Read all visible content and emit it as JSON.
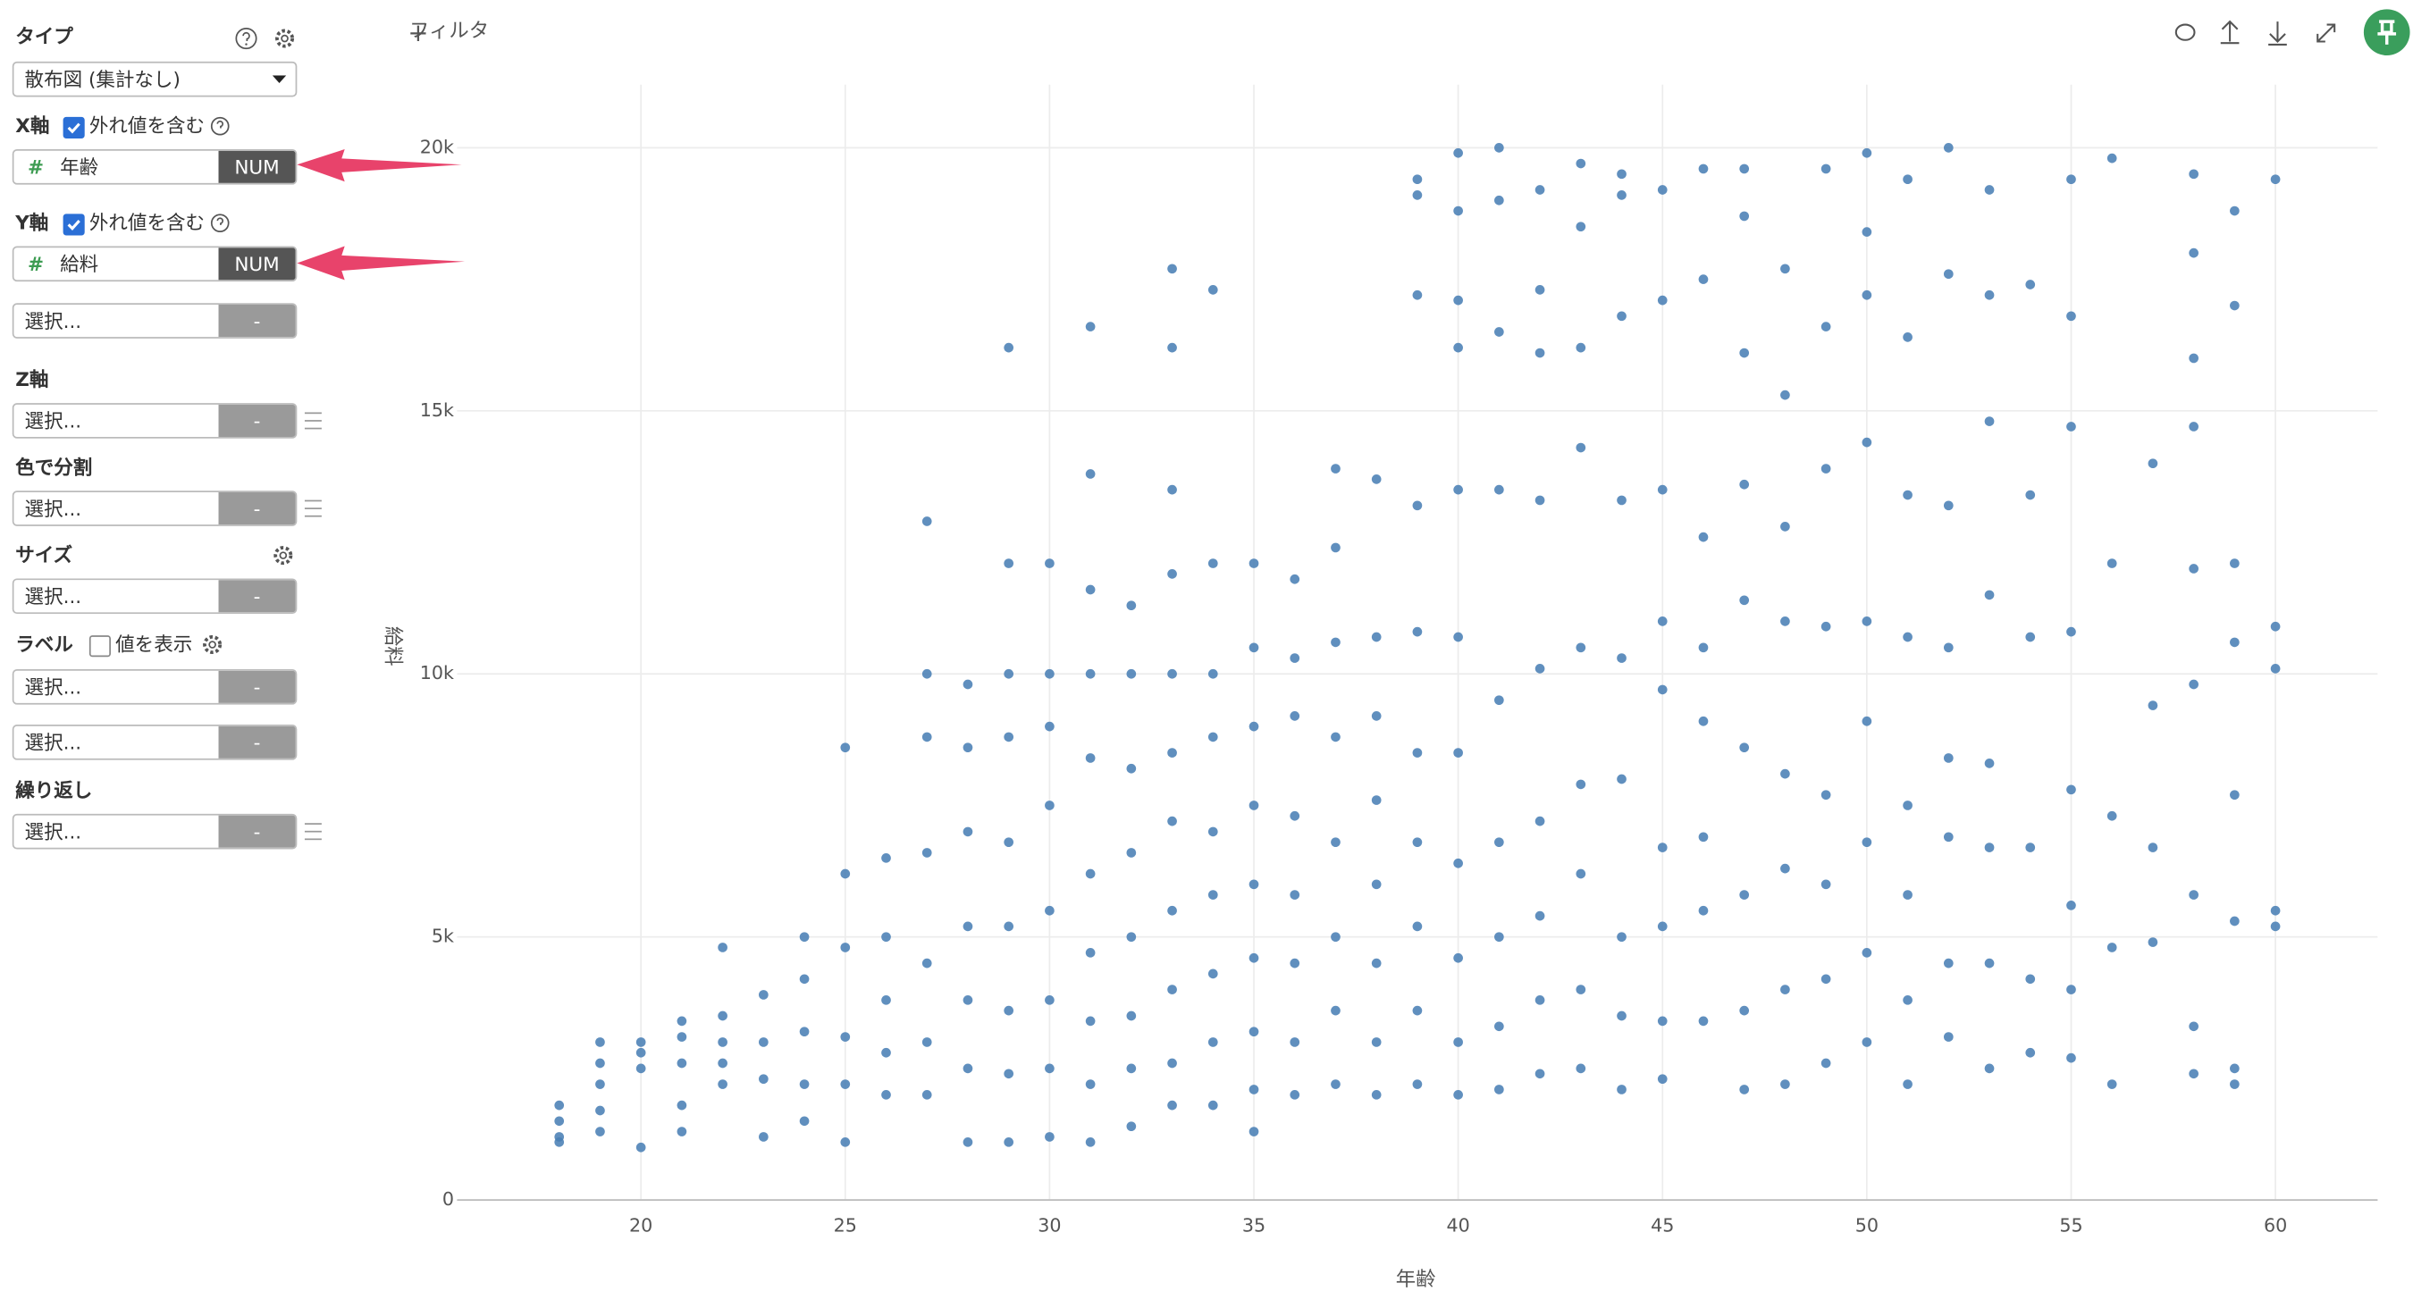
{
  "toolbar": {
    "filter": "フィルタ"
  },
  "sidebar": {
    "type": {
      "label": "タイプ",
      "value": "散布図 (集計なし)"
    },
    "x_axis": {
      "label": "X軸",
      "option": "外れ値を含む",
      "checked": true,
      "field": "年齢",
      "kind": "NUM"
    },
    "y_axis": {
      "label": "Y軸",
      "option": "外れ値を含む",
      "checked": true,
      "field": "給料",
      "kind": "NUM",
      "extra": {
        "placeholder": "選択...",
        "tag": "-"
      }
    },
    "z_axis": {
      "label": "Z軸",
      "select": {
        "placeholder": "選択...",
        "tag": "-"
      }
    },
    "color": {
      "label": "色で分割",
      "select": {
        "placeholder": "選択...",
        "tag": "-"
      }
    },
    "size": {
      "label": "サイズ",
      "select": {
        "placeholder": "選択...",
        "tag": "-"
      }
    },
    "label": {
      "label": "ラベル",
      "option": "値を表示",
      "checked": false,
      "selects": [
        {
          "placeholder": "選択...",
          "tag": "-"
        },
        {
          "placeholder": "選択...",
          "tag": "-"
        }
      ]
    },
    "repeat": {
      "label": "繰り返し",
      "select": {
        "placeholder": "選択...",
        "tag": "-"
      }
    }
  },
  "chart_data": {
    "type": "scatter",
    "xlabel": "年齢",
    "ylabel": "給料",
    "color": "#4a7fb5",
    "grid": true,
    "xlim": [
      15.5,
      62.5
    ],
    "ylim": [
      0,
      21200
    ],
    "xticks": [
      20,
      25,
      30,
      35,
      40,
      45,
      50,
      55,
      60
    ],
    "yticks": [
      0,
      {
        "value": 5000,
        "label": "5k"
      },
      {
        "value": 10000,
        "label": "10k"
      },
      {
        "value": 15000,
        "label": "15k"
      },
      {
        "value": 20000,
        "label": "20k"
      }
    ],
    "x": [
      18,
      18,
      18,
      18,
      19,
      19,
      19,
      19,
      19,
      20,
      20,
      20,
      20,
      21,
      21,
      21,
      21,
      21,
      22,
      22,
      22,
      22,
      22,
      23,
      23,
      23,
      23,
      24,
      24,
      24,
      24,
      24,
      25,
      25,
      25,
      25,
      25,
      25,
      26,
      26,
      26,
      26,
      26,
      27,
      27,
      27,
      27,
      27,
      27,
      27,
      28,
      28,
      28,
      28,
      28,
      28,
      28,
      29,
      29,
      29,
      29,
      29,
      29,
      29,
      29,
      29,
      30,
      30,
      30,
      30,
      30,
      30,
      30,
      30,
      31,
      31,
      31,
      31,
      31,
      31,
      31,
      31,
      31,
      31,
      32,
      32,
      32,
      32,
      32,
      32,
      32,
      32,
      33,
      33,
      33,
      33,
      33,
      33,
      33,
      33,
      33,
      33,
      33,
      34,
      34,
      34,
      34,
      34,
      34,
      34,
      34,
      34,
      35,
      35,
      35,
      35,
      35,
      35,
      35,
      35,
      35,
      36,
      36,
      36,
      36,
      36,
      36,
      36,
      36,
      37,
      37,
      37,
      37,
      37,
      37,
      37,
      37,
      38,
      38,
      38,
      38,
      38,
      38,
      38,
      38,
      39,
      39,
      39,
      39,
      39,
      39,
      39,
      39,
      39,
      39,
      40,
      40,
      40,
      40,
      40,
      40,
      40,
      40,
      40,
      40,
      40,
      41,
      41,
      41,
      41,
      41,
      41,
      41,
      41,
      41,
      42,
      42,
      42,
      42,
      42,
      42,
      42,
      42,
      42,
      43,
      43,
      43,
      43,
      43,
      43,
      43,
      43,
      43,
      44,
      44,
      44,
      44,
      44,
      44,
      44,
      44,
      44,
      45,
      45,
      45,
      45,
      45,
      45,
      45,
      45,
      45,
      46,
      46,
      46,
      46,
      46,
      46,
      46,
      46,
      47,
      47,
      47,
      47,
      47,
      47,
      47,
      47,
      47,
      48,
      48,
      48,
      48,
      48,
      48,
      48,
      48,
      49,
      49,
      49,
      49,
      49,
      49,
      49,
      49,
      50,
      50,
      50,
      50,
      50,
      50,
      50,
      50,
      50,
      51,
      51,
      51,
      51,
      51,
      51,
      51,
      51,
      52,
      52,
      52,
      52,
      52,
      52,
      52,
      52,
      53,
      53,
      53,
      53,
      53,
      53,
      53,
      53,
      54,
      54,
      54,
      54,
      54,
      54,
      55,
      55,
      55,
      55,
      55,
      55,
      55,
      55,
      56,
      56,
      56,
      56,
      56,
      57,
      57,
      57,
      57,
      58,
      58,
      58,
      58,
      58,
      58,
      58,
      58,
      58,
      59,
      59,
      59,
      59,
      59,
      59,
      59,
      59,
      60,
      60,
      60,
      60,
      60
    ],
    "y": [
      1200,
      1500,
      1800,
      1100,
      1300,
      1700,
      2200,
      2600,
      3000,
      1000,
      2500,
      2800,
      3000,
      1300,
      1800,
      2600,
      3100,
      3400,
      2200,
      2600,
      3000,
      3500,
      4800,
      1200,
      2300,
      3000,
      3900,
      1500,
      2200,
      3200,
      4200,
      5000,
      1100,
      2200,
      3100,
      4800,
      6200,
      8600,
      2000,
      2800,
      3800,
      5000,
      6500,
      2000,
      3000,
      4500,
      6600,
      8800,
      10000,
      12900,
      1100,
      2500,
      3800,
      5200,
      7000,
      8600,
      9800,
      1100,
      2400,
      3600,
      5200,
      6800,
      8800,
      10000,
      12100,
      16200,
      1200,
      2500,
      3800,
      5500,
      7500,
      9000,
      10000,
      12100,
      1100,
      2200,
      3400,
      4700,
      6200,
      8400,
      10000,
      11600,
      13800,
      16600,
      1400,
      2500,
      3500,
      5000,
      6600,
      8200,
      10000,
      11300,
      1800,
      2600,
      4000,
      5500,
      7200,
      8500,
      10000,
      11900,
      13500,
      16200,
      17700,
      1800,
      3000,
      4300,
      5800,
      7000,
      8800,
      10000,
      12100,
      17300,
      1300,
      2100,
      3200,
      4600,
      6000,
      7500,
      9000,
      10500,
      12100,
      2000,
      3000,
      4500,
      5800,
      7300,
      9200,
      10300,
      11800,
      2200,
      3600,
      5000,
      6800,
      8800,
      10600,
      12400,
      13900,
      2000,
      3000,
      4500,
      6000,
      7600,
      9200,
      10700,
      13700,
      2200,
      3600,
      5200,
      6800,
      8500,
      10800,
      13200,
      17200,
      19100,
      19400,
      2000,
      3000,
      4600,
      6400,
      8500,
      10700,
      13500,
      16200,
      17100,
      18800,
      19900,
      2100,
      3300,
      5000,
      6800,
      9500,
      13500,
      16500,
      19000,
      20000,
      2400,
      3800,
      5400,
      7200,
      10100,
      13300,
      16100,
      17300,
      19200,
      2500,
      4000,
      6200,
      7900,
      10500,
      14300,
      16200,
      18500,
      19700,
      2100,
      3500,
      5000,
      8000,
      10300,
      13300,
      16800,
      19100,
      19500,
      2300,
      3400,
      5200,
      6700,
      9700,
      11000,
      13500,
      17100,
      19200,
      3400,
      5500,
      6900,
      9100,
      10500,
      12600,
      17500,
      19600,
      2100,
      3600,
      5800,
      8600,
      11400,
      13600,
      16100,
      18700,
      19600,
      2200,
      4000,
      6300,
      8100,
      11000,
      12800,
      15300,
      17700,
      2600,
      4200,
      6000,
      7700,
      10900,
      13900,
      16600,
      19600,
      3000,
      4700,
      6800,
      9100,
      11000,
      14400,
      17200,
      18400,
      19900,
      2200,
      3800,
      5800,
      7500,
      10700,
      13400,
      16400,
      19400,
      3100,
      4500,
      6900,
      8400,
      10500,
      13200,
      17600,
      20000,
      2500,
      4500,
      6700,
      8300,
      11500,
      14800,
      17200,
      19200,
      2800,
      4200,
      6700,
      10700,
      13400,
      17400,
      2700,
      4000,
      5600,
      7800,
      10800,
      14700,
      16800,
      19400,
      2200,
      4800,
      7300,
      12100,
      19800,
      4900,
      6700,
      9400,
      14000,
      2400,
      3300,
      5800,
      9800,
      12000,
      14700,
      16000,
      18000,
      19500,
      2200,
      2500,
      5300,
      7700,
      10600,
      12100,
      17000,
      18800,
      5200,
      5500,
      10100,
      10900,
      19400
    ]
  }
}
